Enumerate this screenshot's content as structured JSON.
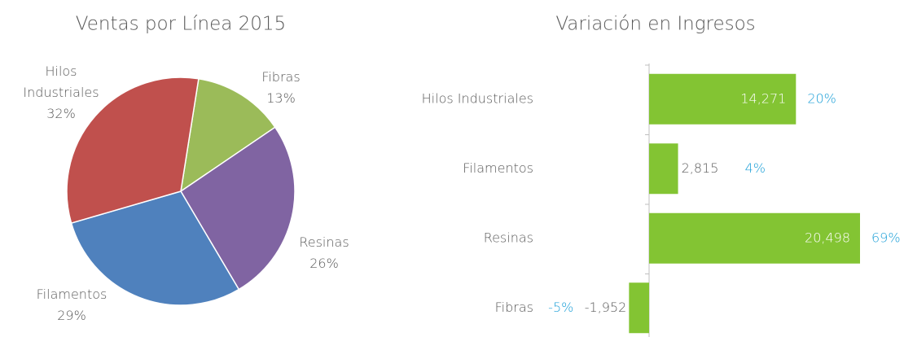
{
  "chart_data": [
    {
      "type": "pie",
      "title": "Ventas por Línea 2015",
      "categories": [
        "Fibras",
        "Resinas",
        "Filamentos",
        "Hilos Industriales"
      ],
      "values": [
        13,
        26,
        29,
        32
      ],
      "value_labels": [
        "13%",
        "26%",
        "29%",
        "32%"
      ],
      "colors": [
        "#9bbb59",
        "#8064a2",
        "#4f81bd",
        "#c0504d"
      ]
    },
    {
      "type": "barh",
      "title": "Variación en Ingresos",
      "categories": [
        "Hilos Industriales",
        "Filamentos",
        "Resinas",
        "Fibras"
      ],
      "values": [
        14271,
        2815,
        20498,
        -1952
      ],
      "value_labels": [
        "14,271",
        "2,815",
        "20,498",
        "-1,952"
      ],
      "change_labels": [
        "20%",
        "4%",
        "69%",
        "-5%"
      ],
      "color": "#83c433"
    }
  ]
}
